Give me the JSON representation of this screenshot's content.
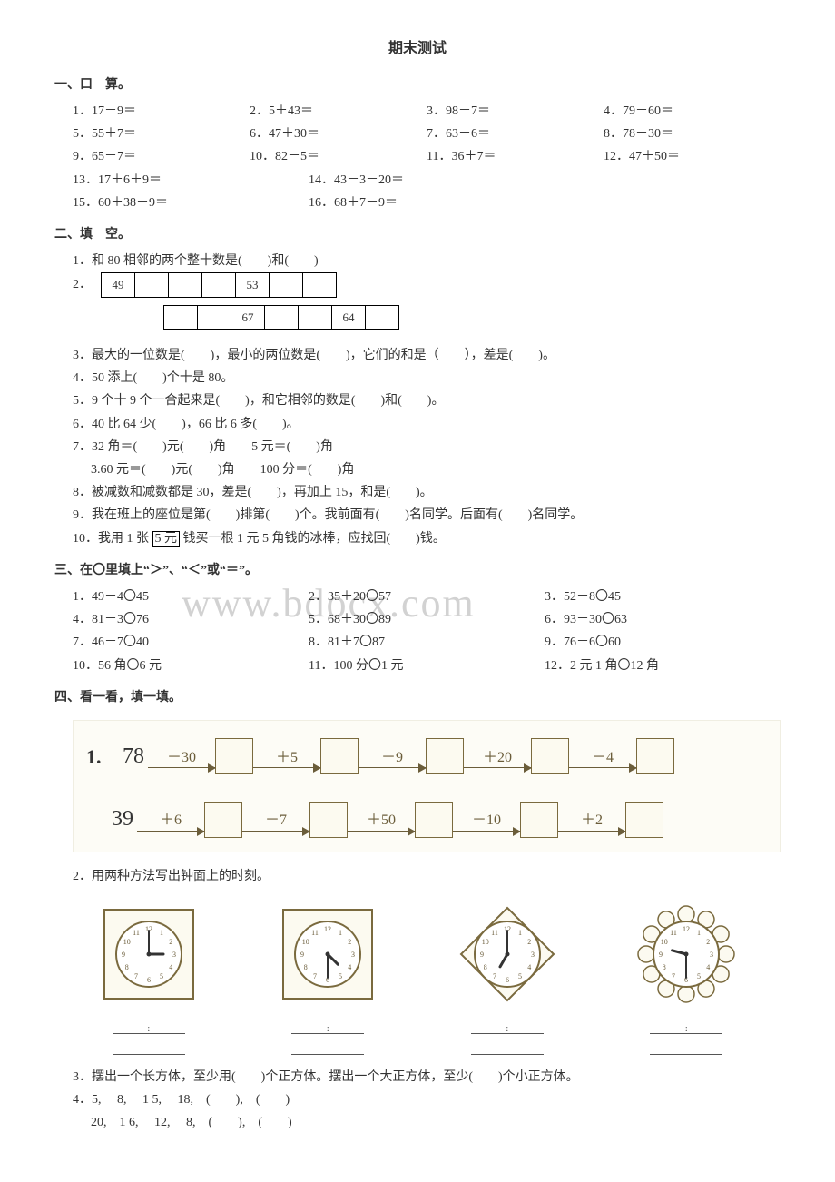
{
  "title": "期末测试",
  "s1": {
    "head": "一、口　算。",
    "items": [
      "1．17－9＝",
      "2．5＋43＝",
      "3．98－7＝",
      "4．79－60＝",
      "5．55＋7＝",
      "6．47＋30＝",
      "7．63－6＝",
      "8．78－30＝",
      "9．65－7＝",
      "10．82－5＝",
      "11．36＋7＝",
      "12．47＋50＝",
      "13．17＋6＋9＝",
      "14．43－3－20＝",
      "15．60＋38－9＝",
      "16．68＋7－9＝"
    ]
  },
  "s2": {
    "head": "二、填　空。",
    "q1": "1．和 80 相邻的两个整十数是(　　)和(　　)",
    "q2label": "2．",
    "seqA": [
      "49",
      "",
      "",
      "",
      "53",
      "",
      ""
    ],
    "seqB": [
      "",
      "",
      "67",
      "",
      "",
      "64",
      ""
    ],
    "q3": "3．最大的一位数是(　　)，最小的两位数是(　　)，它们的和是（　　），差是(　　)。",
    "q4": "4．50 添上(　　)个十是 80。",
    "q5": "5．9 个十 9 个一合起来是(　　)，和它相邻的数是(　　)和(　　)。",
    "q6": "6．40 比 64 少(　　)，66 比 6 多(　　)。",
    "q7a": "7．32 角＝(　　)元(　　)角　　5 元＝(　　)角",
    "q7b": "3.60 元＝(　　)元(　　)角　　100 分＝(　　)角",
    "q8": "8．被减数和减数都是 30，差是(　　)，再加上 15，和是(　　)。",
    "q9": "9．我在班上的座位是第(　　)排第(　　)个。我前面有(　　)名同学。后面有(　　)名同学。",
    "q10a": "10．我用 1 张",
    "q10b": "5 元",
    "q10c": "钱买一根 1 元 5 角钱的冰棒，应找回(　　)钱。"
  },
  "s3": {
    "head": "三、在〇里填上“＞”、“＜”或“＝”。",
    "rows": [
      [
        "1．49－4〇45",
        "2．35＋20〇57",
        "3．52－8〇45"
      ],
      [
        "4．81－3〇76",
        "5．68＋30〇89",
        "6．93－30〇63"
      ],
      [
        "7．46－7〇40",
        "8．81＋7〇87",
        "9．76－6〇60"
      ],
      [
        "10．56 角〇6 元",
        "11．100 分〇1 元",
        "12．2 元 1 角〇12 角"
      ]
    ]
  },
  "s4": {
    "head": "四、看一看，填一填。",
    "chain1": {
      "label": "1.",
      "seed": "78",
      "ops": [
        "－30",
        "＋5",
        "－9",
        "＋20",
        "－4"
      ]
    },
    "chain2": {
      "seed": "39",
      "ops": [
        "＋6",
        "－7",
        "＋50",
        "－10",
        "＋2"
      ]
    },
    "q2": "2．用两种方法写出钟面上的时刻。",
    "clocks": [
      {
        "shape": "square",
        "hour": 3,
        "minute": 0
      },
      {
        "shape": "square",
        "hour": 4,
        "minute": 30
      },
      {
        "shape": "diamond",
        "hour": 7,
        "minute": 0
      },
      {
        "shape": "flower",
        "hour": 9,
        "minute": 30
      }
    ],
    "q3": "3．摆出一个长方体，至少用(　　)个正方体。摆出一个大正方体，至少(　　)个小正方体。",
    "q4a": "4．5,　 8,　 1 5,　 18,　(　　),　(　　)",
    "q4b": "20,　1 6,　 12,　 8,　(　　),　(　　)"
  },
  "watermark": "www.bdocx.com",
  "colors": {
    "ink": "#333333",
    "diagram_stroke": "#6b5d3a",
    "diagram_bg": "#fdfcf6",
    "box_bg": "#fcfaf0",
    "watermark": "#d2d2d2"
  }
}
